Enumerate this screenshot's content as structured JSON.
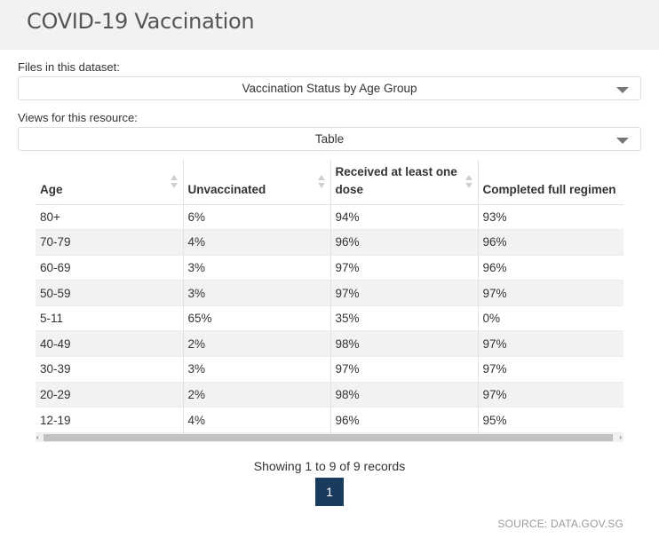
{
  "header": {
    "title": "COVID-19 Vaccination"
  },
  "files": {
    "label": "Files in this dataset:",
    "selected": "Vaccination Status by Age Group"
  },
  "views": {
    "label": "Views for this resource:",
    "selected": "Table"
  },
  "table": {
    "columns": [
      "Age",
      "Unvaccinated",
      "Received at least one dose",
      "Completed full regimen"
    ],
    "rows": [
      [
        "80+",
        "6%",
        "94%",
        "93%"
      ],
      [
        "70-79",
        "4%",
        "96%",
        "96%"
      ],
      [
        "60-69",
        "3%",
        "97%",
        "96%"
      ],
      [
        "50-59",
        "3%",
        "97%",
        "97%"
      ],
      [
        "5-11",
        "65%",
        "35%",
        "0%"
      ],
      [
        "40-49",
        "2%",
        "98%",
        "97%"
      ],
      [
        "30-39",
        "3%",
        "97%",
        "97%"
      ],
      [
        "20-29",
        "2%",
        "98%",
        "97%"
      ],
      [
        "12-19",
        "4%",
        "96%",
        "95%"
      ]
    ]
  },
  "scrollbar": {
    "left_arrow": "‹",
    "right_arrow": "›"
  },
  "pagination": {
    "summary": "Showing 1 to 9 of 9 records",
    "current_page": "1"
  },
  "footer": {
    "source": "SOURCE: DATA.GOV.SG"
  }
}
